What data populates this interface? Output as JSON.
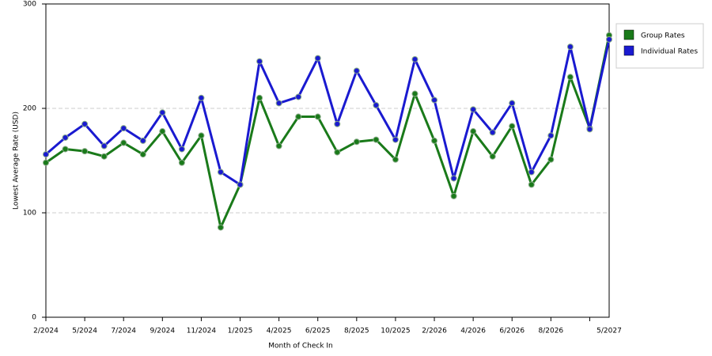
{
  "chart_data": {
    "type": "line",
    "x_label": "Month of Check In",
    "y_label": "Lowest Average Rate (USD)",
    "categories": [
      "2/2024",
      null,
      "5/2024",
      null,
      "7/2024",
      null,
      "9/2024",
      null,
      "11/2024",
      null,
      "1/2025",
      null,
      "4/2025",
      null,
      "6/2025",
      null,
      "8/2025",
      null,
      "10/2025",
      null,
      "2/2026",
      null,
      "4/2026",
      null,
      "6/2026",
      null,
      "8/2026",
      null,
      null,
      "5/2027"
    ],
    "series": [
      {
        "name": "Group Rates",
        "color": "#1a7a1a",
        "values": [
          148,
          161,
          159,
          154,
          167,
          156,
          178,
          148,
          174,
          86,
          127,
          210,
          164,
          192,
          192,
          158,
          168,
          170,
          151,
          214,
          169,
          116,
          178,
          154,
          183,
          127,
          151,
          230,
          181,
          270
        ]
      },
      {
        "name": "Individual Rates",
        "color": "#1a1ad0",
        "values": [
          156,
          172,
          185,
          164,
          181,
          169,
          196,
          161,
          210,
          139,
          127,
          245,
          205,
          211,
          248,
          185,
          236,
          203,
          170,
          247,
          208,
          133,
          199,
          177,
          205,
          139,
          174,
          259,
          180,
          266
        ]
      }
    ],
    "ylim": [
      0,
      300
    ],
    "yticks": [
      0,
      100,
      200,
      300
    ],
    "grid": true,
    "legend": "right"
  }
}
